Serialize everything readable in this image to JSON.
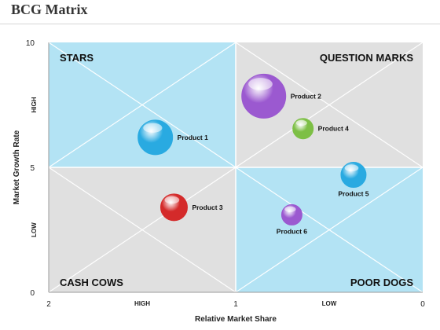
{
  "page": {
    "title": "BCG Matrix"
  },
  "chart_data": {
    "type": "scatter",
    "title": "BCG Matrix",
    "xlabel": "Relative Market Share",
    "ylabel": "Market Growth Rate",
    "xlim": [
      2,
      0
    ],
    "ylim": [
      0,
      10
    ],
    "x_ticks": [
      "2",
      "1",
      "0"
    ],
    "y_ticks": [
      "0",
      "5",
      "10"
    ],
    "x_words": [
      "HIGH",
      "LOW"
    ],
    "y_words": [
      "HIGH",
      "LOW"
    ],
    "quadrants": [
      {
        "label": "STARS",
        "corner": "top-left",
        "fill": "#b3e3f4"
      },
      {
        "label": "QUESTION MARKS",
        "corner": "top-right",
        "fill": "#e0e0e0"
      },
      {
        "label": "CASH COWS",
        "corner": "bottom-left",
        "fill": "#e0e0e0"
      },
      {
        "label": "POOR DOGS",
        "corner": "bottom-right",
        "fill": "#b3e3f4"
      }
    ],
    "points": [
      {
        "label": "Product 1",
        "x": 1.43,
        "y": 6.2,
        "size": 22,
        "color": "#29aae1",
        "label_pos": "right"
      },
      {
        "label": "Product 2",
        "x": 0.85,
        "y": 7.85,
        "size": 28,
        "color": "#9b59d0",
        "label_pos": "right"
      },
      {
        "label": "Product 3",
        "x": 1.33,
        "y": 3.4,
        "size": 17,
        "color": "#d42a2a",
        "label_pos": "right"
      },
      {
        "label": "Product 4",
        "x": 0.64,
        "y": 6.55,
        "size": 13,
        "color": "#7dbf45",
        "label_pos": "right"
      },
      {
        "label": "Product 5",
        "x": 0.37,
        "y": 4.7,
        "size": 16,
        "color": "#29aae1",
        "label_pos": "below"
      },
      {
        "label": "Product 6",
        "x": 0.7,
        "y": 3.1,
        "size": 13,
        "color": "#9b59d0",
        "label_pos": "below"
      }
    ]
  }
}
